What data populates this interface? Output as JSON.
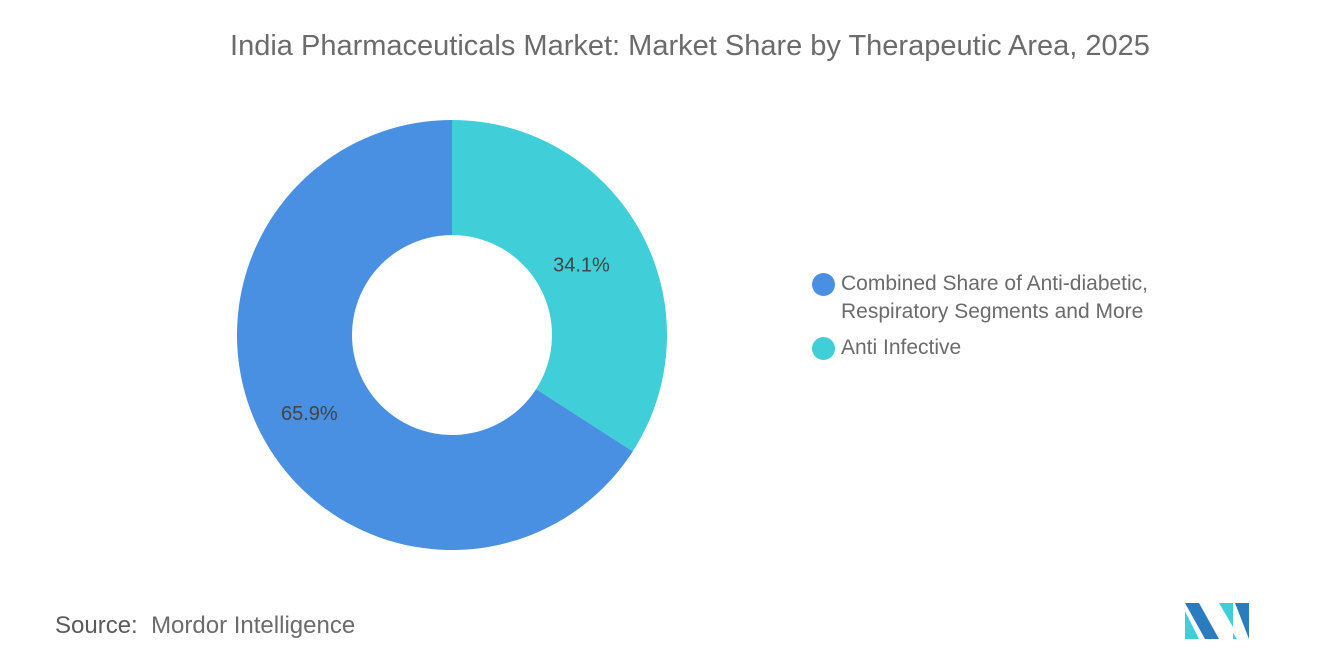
{
  "title": "India Pharmaceuticals Market: Market Share by Therapeutic Area, 2025",
  "chart_data": {
    "type": "donut",
    "title": "India Pharmaceuticals Market: Market Share by Therapeutic Area, 2025",
    "series": [
      {
        "name": "Anti Infective",
        "value": 34.1,
        "label": "34.1%",
        "color": "#40cfd9"
      },
      {
        "name": "Combined Share of Anti-diabetic, Respiratory Segments and More",
        "value": 65.9,
        "label": "65.9%",
        "color": "#4a90e2"
      }
    ],
    "legend_placement": "right"
  },
  "legend": [
    {
      "label": "Combined Share of Anti-diabetic, Respiratory Segments and More",
      "color": "#4a90e2"
    },
    {
      "label": "Anti Infective",
      "color": "#40cfd9"
    }
  ],
  "source": {
    "prefix": "Source:",
    "text": "Mordor Intelligence"
  },
  "logo": {
    "text": "Mordor Intelligence logo",
    "colors": [
      "#2b7bbf",
      "#40cfd9"
    ]
  }
}
